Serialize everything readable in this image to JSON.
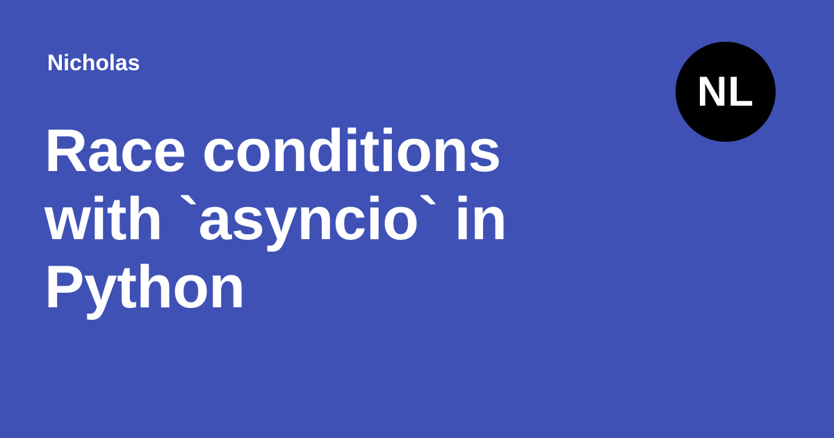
{
  "author": {
    "name": "Nicholas"
  },
  "post": {
    "title": "Race conditions with `asyncio` in Python"
  },
  "logo": {
    "text": "NL",
    "background_color": "#000000",
    "text_color": "#ffffff"
  },
  "theme": {
    "background_color": "#3f51b5",
    "text_color": "#ffffff"
  }
}
